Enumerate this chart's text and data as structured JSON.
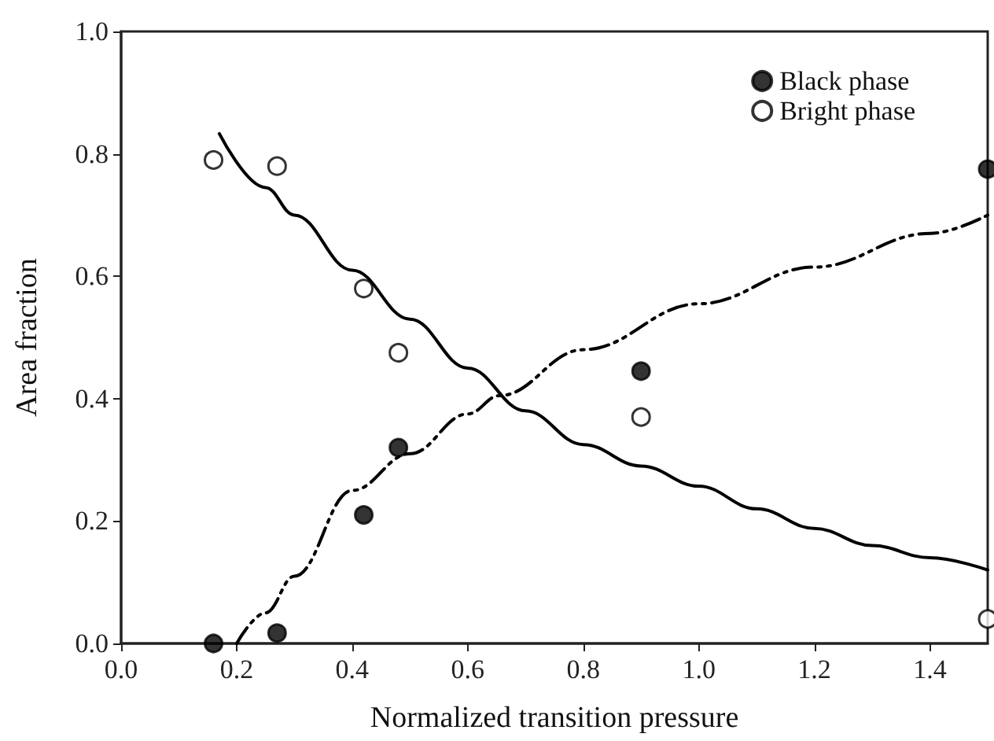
{
  "chart_data": {
    "type": "scatter",
    "xlabel": "Normalized transition pressure",
    "ylabel": "Area fraction",
    "xlim": [
      0,
      1.5
    ],
    "xticks": [
      {
        "value": 0,
        "label": "0.0"
      },
      0.2,
      0.4,
      0.6,
      0.8,
      {
        "value": 1,
        "label": "1.0"
      },
      1.2,
      1.4
    ],
    "ylim": [
      0,
      1.0
    ],
    "yticks": [
      {
        "value": 0,
        "label": "0.0"
      },
      0.2,
      0.4,
      0.6,
      0.8,
      {
        "value": 1,
        "label": "1.0"
      }
    ],
    "grid": false,
    "legend": "top right",
    "series": [
      {
        "name": "Black phase",
        "color": "#000000",
        "marker": "circle",
        "x": [
          0.16,
          0.27,
          0.42,
          0.48,
          0.9,
          1.5
        ],
        "values": [
          0.0,
          0.017,
          0.21,
          0.32,
          0.445,
          0.775
        ]
      },
      {
        "name": "Bright phase",
        "color": "#ffffff",
        "marker": "circle",
        "x": [
          0.16,
          0.27,
          0.42,
          0.48,
          0.9,
          1.5
        ],
        "values": [
          0.79,
          0.78,
          0.58,
          0.475,
          0.37,
          0.04
        ]
      },
      {
        "type": "line",
        "color": "#000000",
        "marker": "none",
        "line_style": "solid",
        "x": [
          0.17,
          0.25,
          0.3,
          0.4,
          0.5,
          0.6,
          0.7,
          0.8,
          0.9,
          1.0,
          1.1,
          1.2,
          1.3,
          1.4,
          1.5
        ],
        "values": [
          0.833,
          0.745,
          0.7,
          0.61,
          0.53,
          0.45,
          0.38,
          0.325,
          0.29,
          0.257,
          0.22,
          0.188,
          0.16,
          0.14,
          0.12
        ]
      },
      {
        "type": "line",
        "color": "#000000",
        "marker": "none",
        "line_style": "dashed",
        "x": [
          0.2,
          0.25,
          0.3,
          0.4,
          0.5,
          0.6,
          0.655,
          0.8,
          1.0,
          1.2,
          1.4,
          1.5
        ],
        "values": [
          0.0,
          0.05,
          0.11,
          0.25,
          0.31,
          0.375,
          0.405,
          0.48,
          0.555,
          0.615,
          0.67,
          0.7
        ]
      }
    ]
  }
}
